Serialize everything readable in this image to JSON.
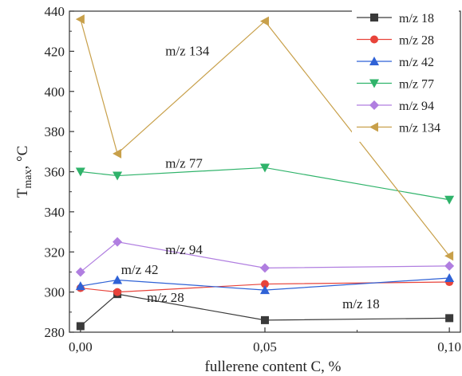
{
  "chart_data": {
    "type": "line",
    "x": [
      0.0,
      0.01,
      0.05,
      0.1
    ],
    "x_ticks": [
      0.0,
      0.05,
      0.1
    ],
    "x_tick_labels": [
      "0,00",
      "0,05",
      "0,10"
    ],
    "xlim": [
      -0.003,
      0.103
    ],
    "ylim": [
      280,
      440
    ],
    "y_ticks": [
      280,
      300,
      320,
      340,
      360,
      380,
      400,
      420,
      440
    ],
    "xlabel": "fullerene content C, %",
    "ylabel": {
      "base": "T",
      "sub": "max",
      "unit": ", °C"
    },
    "grid": false,
    "legend_position": "top-right",
    "series": [
      {
        "name": "m/z 18",
        "color": "#3a3a3a",
        "marker": "square",
        "values": [
          283,
          299,
          286,
          287
        ]
      },
      {
        "name": "m/z 28",
        "color": "#e8433a",
        "marker": "circle",
        "values": [
          302,
          300,
          304,
          305
        ]
      },
      {
        "name": "m/z 42",
        "color": "#2f62d6",
        "marker": "triangle-up",
        "values": [
          303,
          306,
          301,
          307
        ]
      },
      {
        "name": "m/z 77",
        "color": "#2fb36a",
        "marker": "triangle-down",
        "values": [
          360,
          358,
          362,
          346
        ]
      },
      {
        "name": "m/z 94",
        "color": "#b07ee0",
        "marker": "diamond",
        "values": [
          310,
          325,
          312,
          313
        ]
      },
      {
        "name": "m/z 134",
        "color": "#c8a04a",
        "marker": "triangle-left",
        "values": [
          436,
          369,
          435,
          318
        ]
      }
    ],
    "annotations": [
      {
        "text": "m/z 134",
        "x": 0.023,
        "y": 418
      },
      {
        "text": "m/z 77",
        "x": 0.023,
        "y": 362
      },
      {
        "text": "m/z 94",
        "x": 0.023,
        "y": 319
      },
      {
        "text": "m/z 42",
        "x": 0.011,
        "y": 309
      },
      {
        "text": "m/z 28",
        "x": 0.018,
        "y": 295
      },
      {
        "text": "m/z 18",
        "x": 0.071,
        "y": 292
      }
    ]
  }
}
